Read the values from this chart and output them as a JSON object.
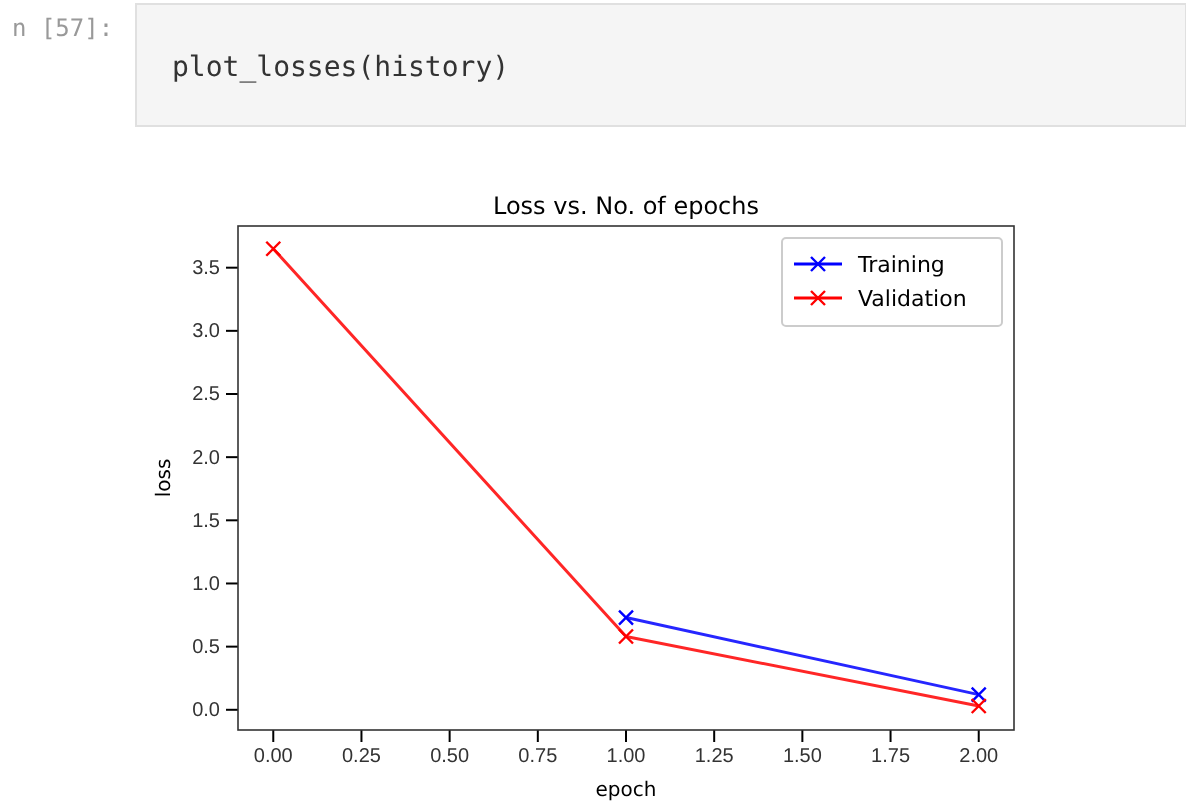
{
  "chart_data": {
    "type": "line",
    "title": "Loss vs. No. of epochs",
    "xlabel": "epoch",
    "ylabel": "loss",
    "x": [
      0,
      1,
      2
    ],
    "series": [
      {
        "name": "Training",
        "color": "#0000ff",
        "values": [
          null,
          0.73,
          0.12
        ]
      },
      {
        "name": "Validation",
        "color": "#ff0000",
        "values": [
          3.65,
          0.58,
          0.03
        ]
      }
    ],
    "xlim": [
      -0.1,
      2.1
    ],
    "xticks": [
      {
        "value": 0,
        "label": "0.00"
      },
      {
        "value": 0.25,
        "label": "0.25"
      },
      {
        "value": 0.5,
        "label": "0.50"
      },
      {
        "value": 0.75,
        "label": "0.75"
      },
      {
        "value": 1,
        "label": "1.00"
      },
      {
        "value": 1.25,
        "label": "1.25"
      },
      {
        "value": 1.5,
        "label": "1.50"
      },
      {
        "value": 1.75,
        "label": "1.75"
      },
      {
        "value": 2,
        "label": "2.00"
      }
    ],
    "ylim": [
      -0.16,
      3.83
    ],
    "yticks": [
      {
        "value": 0,
        "label": "0.0"
      },
      {
        "value": 0.5,
        "label": "0.5"
      },
      {
        "value": 1,
        "label": "1.0"
      },
      {
        "value": 1.5,
        "label": "1.5"
      },
      {
        "value": 2,
        "label": "2.0"
      },
      {
        "value": 2.5,
        "label": "2.5"
      },
      {
        "value": 3,
        "label": "3.0"
      },
      {
        "value": 3.5,
        "label": "3.5"
      }
    ],
    "marker": "cross",
    "legend": "top right",
    "grid": false,
    "annotations": [
      "n [57]:",
      "plot_losses(history)"
    ]
  }
}
